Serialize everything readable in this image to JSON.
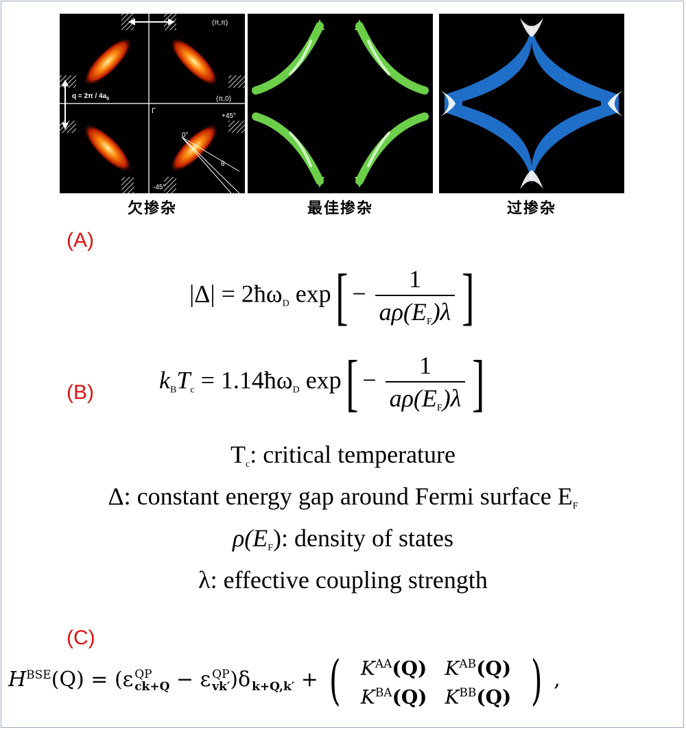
{
  "figure": {
    "panels": [
      {
        "caption": "欠掺杂",
        "labels": {
          "pi_pi": "(π,π)",
          "q": "q = 2π / 4a",
          "q_sub": "0",
          "pi_0": "(π,0)",
          "gamma": "Γ",
          "plus45": "+45°",
          "zero_deg": "0°",
          "theta": "θ",
          "minus45": "-45°"
        },
        "arc_color": "#ff5a00"
      },
      {
        "caption": "最佳掺杂",
        "arc_color": "#6ccf4a"
      },
      {
        "caption": "过掺杂",
        "arc_color": "#2277cc"
      }
    ]
  },
  "section_labels": {
    "a": "(A)",
    "b": "(B)",
    "c": "(C)"
  },
  "equations": {
    "gap": {
      "lhs": "|Δ| = 2ħω",
      "sub_d": "D",
      "exp": "exp",
      "num": "1",
      "den": "aρ(E",
      "den_sub": "F",
      "den_end": ")λ"
    },
    "tc": {
      "lhs_k": "k",
      "lhs_b": "B",
      "lhs_t": "T",
      "lhs_c": "c",
      "eq": "= 1.14ħω",
      "sub_d": "D",
      "exp": "exp",
      "num": "1",
      "den": "aρ(E",
      "den_sub": "F",
      "den_end": ")λ"
    }
  },
  "definitions": {
    "tc_sym": "T",
    "tc_sub": "c",
    "tc_text": ": critical temperature",
    "delta_text": "Δ: constant energy gap around Fermi surface E",
    "delta_sub": "F",
    "rho_sym": "ρ(E",
    "rho_sub": "F",
    "rho_text": "): density of states",
    "lambda_text": "λ: effective coupling strength"
  },
  "bse": {
    "h": "H",
    "h_sup": "BSE",
    "arg": "(Q) = (ε",
    "qp": "QP",
    "ck": "ck+Q",
    "minus": " − ε",
    "vk": "vk′",
    "delta_close": ")δ",
    "delta_sub": "k+Q,k′",
    "plus": " + ",
    "k_aa": "K",
    "sup_aa": "AA",
    "k_ab": "K",
    "sup_ab": "AB",
    "k_ba": "K",
    "sup_ba": "BA",
    "k_bb": "K",
    "sup_bb": "BB",
    "q": "(Q)",
    "tail": " ,"
  }
}
